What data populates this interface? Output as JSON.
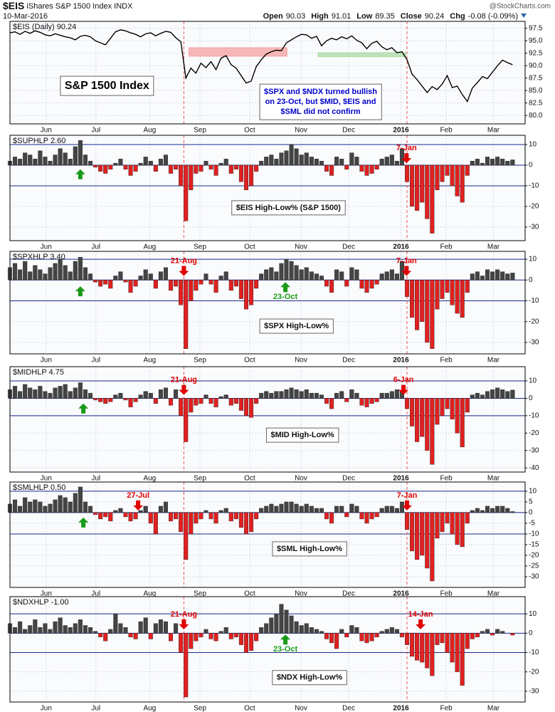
{
  "header": {
    "symbol": "$EIS",
    "name": "iShares S&P 1500 Index",
    "exchange": "INDX",
    "date": "10-Mar-2016",
    "watermark": "@StockCharts.com",
    "quote": [
      [
        "Open",
        "90.03"
      ],
      [
        "High",
        "91.01"
      ],
      [
        "Low",
        "89.35"
      ],
      [
        "Close",
        "90.24"
      ],
      [
        "Chg",
        "-0.08 (-0.09%)"
      ]
    ]
  },
  "x_axis": {
    "xlim": [
      0,
      102.5
    ],
    "xticks": [
      {
        "value": 7.2,
        "label": "Jun"
      },
      {
        "value": 17.1,
        "label": "Jul"
      },
      {
        "value": 27.8,
        "label": "Aug"
      },
      {
        "value": 37.8,
        "label": "Sep"
      },
      {
        "value": 47.7,
        "label": "Oct"
      },
      {
        "value": 57.9,
        "label": "Nov"
      },
      {
        "value": 67.4,
        "label": "Dec"
      },
      {
        "value": 77.8,
        "label": "2016"
      },
      {
        "value": 86.8,
        "label": "Feb"
      },
      {
        "value": 96.2,
        "label": "Mar"
      }
    ],
    "event_lines": [
      34.6,
      79
    ]
  },
  "chart_data": [
    {
      "type": "line",
      "legend_label": "$EIS (Daily) 90.24",
      "color": "#000000",
      "grid": true,
      "ylim": [
        78.3,
        98.9
      ],
      "yticks": [
        {
          "value": 80,
          "label": "80.0"
        },
        82.5,
        {
          "value": 85,
          "label": "85.0"
        },
        87.5,
        {
          "value": 90,
          "label": "90.0"
        },
        92.5,
        {
          "value": 95,
          "label": "95.0"
        },
        97.5
      ],
      "values": [
        96.6,
        96.8,
        96.3,
        96.9,
        96.5,
        97.0,
        96.7,
        96.2,
        96.0,
        96.4,
        96.1,
        95.8,
        95.6,
        95.2,
        95.9,
        96.1,
        95.8,
        95.0,
        94.6,
        94.2,
        95.5,
        96.8,
        97.2,
        97.0,
        96.6,
        96.3,
        95.8,
        96.4,
        96.6,
        96.0,
        96.5,
        96.9,
        96.7,
        95.6,
        94.8,
        87.5,
        89.5,
        88.5,
        90.5,
        89.6,
        90.8,
        89.2,
        91.5,
        92.0,
        90.2,
        89.5,
        88.0,
        86.5,
        86.9,
        89.8,
        91.2,
        92.3,
        92.8,
        93.1,
        93.0,
        94.6,
        95.2,
        95.8,
        96.3,
        96.2,
        95.5,
        95.9,
        94.0,
        95.0,
        95.5,
        95.2,
        95.8,
        95.4,
        96.0,
        95.1,
        94.6,
        93.4,
        94.5,
        94.9,
        93.8,
        93.2,
        93.6,
        92.6,
        92.8,
        91.2,
        88.3,
        87.2,
        85.9,
        84.6,
        85.8,
        85.2,
        86.3,
        88.0,
        85.6,
        85.9,
        84.2,
        82.8,
        85.5,
        86.6,
        87.8,
        87.4,
        88.7,
        90.0,
        91.1,
        90.6,
        90.2
      ],
      "zones": [
        {
          "x0": 35.6,
          "x1": 55.1,
          "y0": 91.9,
          "y1": 93.6,
          "color": "#f4a0a0"
        },
        {
          "x0": 61.3,
          "x1": 78.8,
          "y0": 91.8,
          "y1": 92.6,
          "color": "#a8dca0"
        }
      ],
      "notes": [
        {
          "lines": [
            "S&P 1500 Index"
          ],
          "x": 19.3,
          "y": 85.9,
          "color": "#000000",
          "size": 16
        },
        {
          "lines": [
            "$SPX and $NDX turned bullish",
            "on 23-Oct, but $MID, $EIS and",
            "$SML did not confirm"
          ],
          "x": 61.8,
          "y": 82.7,
          "color": "#0000cc",
          "size": 11
        }
      ]
    },
    {
      "type": "bar",
      "legend_label": "$SUPHLP 2.60",
      "grid": true,
      "ylim": [
        -36.6,
        14.5
      ],
      "yticks": [
        10,
        0,
        -10,
        -20,
        -30
      ],
      "hlines": [
        10,
        0,
        -10
      ],
      "values": [
        2,
        4,
        3,
        6,
        5,
        3,
        7,
        4,
        2,
        5,
        8,
        6,
        3,
        9,
        12,
        5,
        2,
        -1,
        -3,
        -4,
        -2,
        1,
        3,
        -2,
        -5,
        -3,
        1,
        4,
        2,
        -3,
        3,
        5,
        -4,
        -2,
        -10,
        -27,
        -12,
        -4,
        -3,
        2,
        -2,
        -5,
        1,
        3,
        -4,
        -2,
        -8,
        -12,
        -10,
        -3,
        2,
        4,
        5,
        3,
        6,
        7,
        10,
        8,
        5,
        6,
        4,
        3,
        2,
        -3,
        -5,
        4,
        3,
        -2,
        6,
        4,
        -3,
        -5,
        -4,
        -2,
        3,
        4,
        5,
        2,
        8,
        -8,
        -20,
        -22,
        -18,
        -26,
        -33,
        -12,
        -8,
        -5,
        -10,
        -15,
        -18,
        -5,
        2,
        3,
        1,
        4,
        3,
        4,
        3,
        2,
        2.6
      ],
      "annotations": [
        {
          "x": 14.0,
          "y": -2,
          "direction": "up",
          "color": "#1a9a1a"
        },
        {
          "x": 78.9,
          "y": 1,
          "direction": "down",
          "color": "#e00000",
          "label": "7-Jan"
        }
      ],
      "label_box": {
        "text": "$EIS High-Low% (S&P 1500)",
        "x": 55.4,
        "y": -20.7
      }
    },
    {
      "type": "bar",
      "legend_label": "$SPXHLP 3.40",
      "grid": true,
      "ylim": [
        -35.5,
        13.8
      ],
      "yticks": [
        10,
        0,
        -10,
        -20,
        -30
      ],
      "hlines": [
        10,
        0,
        -10
      ],
      "values": [
        6,
        8,
        5,
        9,
        4,
        7,
        5,
        3,
        6,
        8,
        10,
        7,
        4,
        9,
        11,
        6,
        3,
        -1,
        -3,
        -2,
        -4,
        2,
        4,
        -1,
        -6,
        -3,
        2,
        5,
        3,
        -4,
        4,
        6,
        -5,
        -3,
        -12,
        -33,
        -10,
        -5,
        -2,
        3,
        -2,
        -6,
        2,
        4,
        -5,
        -3,
        -9,
        -14,
        -12,
        -4,
        3,
        5,
        6,
        4,
        8,
        10,
        9,
        7,
        5,
        6,
        4,
        3,
        2,
        -3,
        -6,
        5,
        4,
        -3,
        6,
        5,
        -4,
        -6,
        -4,
        -2,
        3,
        4,
        5,
        3,
        9,
        -8,
        -18,
        -24,
        -20,
        -30,
        -33,
        -14,
        -9,
        -6,
        -12,
        -16,
        -18,
        -6,
        3,
        4,
        2,
        5,
        4,
        5,
        4,
        3,
        3.4
      ],
      "annotations": [
        {
          "x": 14.0,
          "y": -3,
          "direction": "up",
          "color": "#1a9a1a"
        },
        {
          "x": 34.6,
          "y": 2,
          "direction": "down",
          "color": "#e00000",
          "label": "21-Aug"
        },
        {
          "x": 54.8,
          "y": -1,
          "direction": "up",
          "color": "#1a9a1a",
          "label": "23-Oct"
        },
        {
          "x": 78.9,
          "y": 2,
          "direction": "down",
          "color": "#e00000",
          "label": "7-Jan"
        }
      ],
      "label_box": {
        "text": "$SPX High-Low%",
        "x": 57,
        "y": -22.2
      }
    },
    {
      "type": "bar",
      "legend_label": "$MIDHLP 4.75",
      "grid": true,
      "ylim": [
        -42.4,
        18.2
      ],
      "yticks": [
        10,
        0,
        -10,
        -20,
        -30,
        -40
      ],
      "hlines": [
        10,
        0,
        -10
      ],
      "values": [
        5,
        7,
        4,
        8,
        6,
        5,
        7,
        4,
        3,
        6,
        7,
        8,
        4,
        6,
        9,
        5,
        3,
        -1,
        -2,
        -3,
        -2,
        2,
        3,
        -1,
        -5,
        -2,
        2,
        4,
        3,
        -3,
        5,
        6,
        -4,
        5,
        -10,
        -25,
        -8,
        -4,
        -3,
        2,
        -3,
        -5,
        1,
        2,
        -4,
        -3,
        -7,
        -10,
        -11,
        -3,
        3,
        4,
        3,
        4,
        4,
        5,
        6,
        5,
        4,
        5,
        3,
        3,
        2,
        -3,
        -6,
        3,
        4,
        -2,
        5,
        3,
        -4,
        -5,
        -3,
        -2,
        3,
        3,
        4,
        5,
        4,
        -6,
        -16,
        -25,
        -22,
        -30,
        -38,
        -15,
        -10,
        -6,
        -12,
        -20,
        -28,
        -8,
        2,
        3,
        2,
        4,
        5,
        6,
        5,
        4,
        4.75
      ],
      "annotations": [
        {
          "x": 14.6,
          "y": -3,
          "direction": "up",
          "color": "#1a9a1a"
        },
        {
          "x": 34.6,
          "y": 2,
          "direction": "down",
          "color": "#e00000",
          "label": "21-Aug"
        },
        {
          "x": 78.3,
          "y": 2,
          "direction": "down",
          "color": "#e00000",
          "label": "6-Jan"
        }
      ],
      "label_box": {
        "text": "$MID High-Low%",
        "x": 58.2,
        "y": -21.2
      }
    },
    {
      "type": "bar",
      "legend_label": "$SMLHLP 0.50",
      "grid": true,
      "ylim": [
        -35,
        14.3
      ],
      "yticks": [
        10,
        5,
        0,
        -5,
        -10,
        -15,
        -20,
        -25,
        -30
      ],
      "hlines": [
        10,
        0,
        -10
      ],
      "values": [
        4,
        6,
        3,
        7,
        5,
        6,
        5,
        3,
        4,
        6,
        8,
        7,
        5,
        9,
        12,
        5,
        3,
        -1,
        -3,
        -2,
        -4,
        1,
        2,
        -2,
        -4,
        -3,
        1,
        3,
        -5,
        -10,
        3,
        5,
        -4,
        -3,
        -9,
        -22,
        -10,
        -5,
        -3,
        1,
        -3,
        -5,
        1,
        2,
        -4,
        -3,
        -7,
        -10,
        -9,
        -3,
        2,
        3,
        4,
        3,
        4,
        5,
        5,
        4,
        3,
        4,
        3,
        2,
        2,
        -3,
        -5,
        3,
        3,
        -2,
        4,
        3,
        -3,
        -5,
        -3,
        -2,
        2,
        3,
        3,
        2,
        5,
        -8,
        -18,
        -22,
        -20,
        -26,
        -32,
        -12,
        -9,
        -5,
        -10,
        -15,
        -16,
        -5,
        1,
        2,
        1,
        3,
        2,
        3,
        3,
        2,
        0.5
      ],
      "annotations": [
        {
          "x": 14.6,
          "y": -2.3,
          "direction": "up",
          "color": "#1a9a1a"
        },
        {
          "x": 25.5,
          "y": 1,
          "direction": "down",
          "color": "#e00000",
          "label": "27-Jul"
        },
        {
          "x": 79,
          "y": 1,
          "direction": "down",
          "color": "#e00000",
          "label": "7-Jan"
        }
      ],
      "label_box": {
        "text": "$SML High-Low%",
        "x": 59.6,
        "y": -17
      }
    },
    {
      "type": "bar",
      "legend_label": "$NDXHLP -1.00",
      "grid": true,
      "ylim": [
        -35.6,
        18.9
      ],
      "yticks": [
        10,
        0,
        -10,
        -20,
        -30
      ],
      "hlines": [
        10,
        0,
        -10
      ],
      "values": [
        5,
        3,
        6,
        2,
        4,
        7,
        3,
        5,
        2,
        6,
        8,
        4,
        3,
        5,
        7,
        4,
        3,
        1,
        -2,
        -4,
        2,
        10,
        5,
        3,
        -2,
        -3,
        6,
        8,
        -3,
        5,
        7,
        6,
        -4,
        5,
        -10,
        -33,
        -8,
        -4,
        -2,
        2,
        -3,
        -4,
        1,
        3,
        -3,
        -2,
        -6,
        -10,
        -9,
        -4,
        3,
        5,
        8,
        10,
        15,
        12,
        9,
        6,
        4,
        5,
        3,
        2,
        1,
        -3,
        -5,
        -8,
        2,
        -2,
        4,
        3,
        -4,
        -5,
        -4,
        -2,
        1,
        2,
        3,
        2,
        -2,
        -6,
        -12,
        -14,
        -15,
        -18,
        -22,
        -6,
        -5,
        -10,
        -15,
        -20,
        -27,
        -8,
        -3,
        -2,
        1,
        2,
        -1,
        2,
        1,
        0,
        -1
      ],
      "annotations": [
        {
          "x": 34.6,
          "y": 2,
          "direction": "down",
          "color": "#e00000",
          "label": "21-Aug"
        },
        {
          "x": 54.8,
          "y": -0.7,
          "direction": "up",
          "color": "#1a9a1a",
          "label": "23-Oct"
        },
        {
          "x": 81.7,
          "y": 2,
          "direction": "down",
          "color": "#e00000",
          "label": "14-Jan"
        }
      ],
      "label_box": {
        "text": "$NDX High-Low%",
        "x": 59.6,
        "y": -23
      }
    }
  ]
}
